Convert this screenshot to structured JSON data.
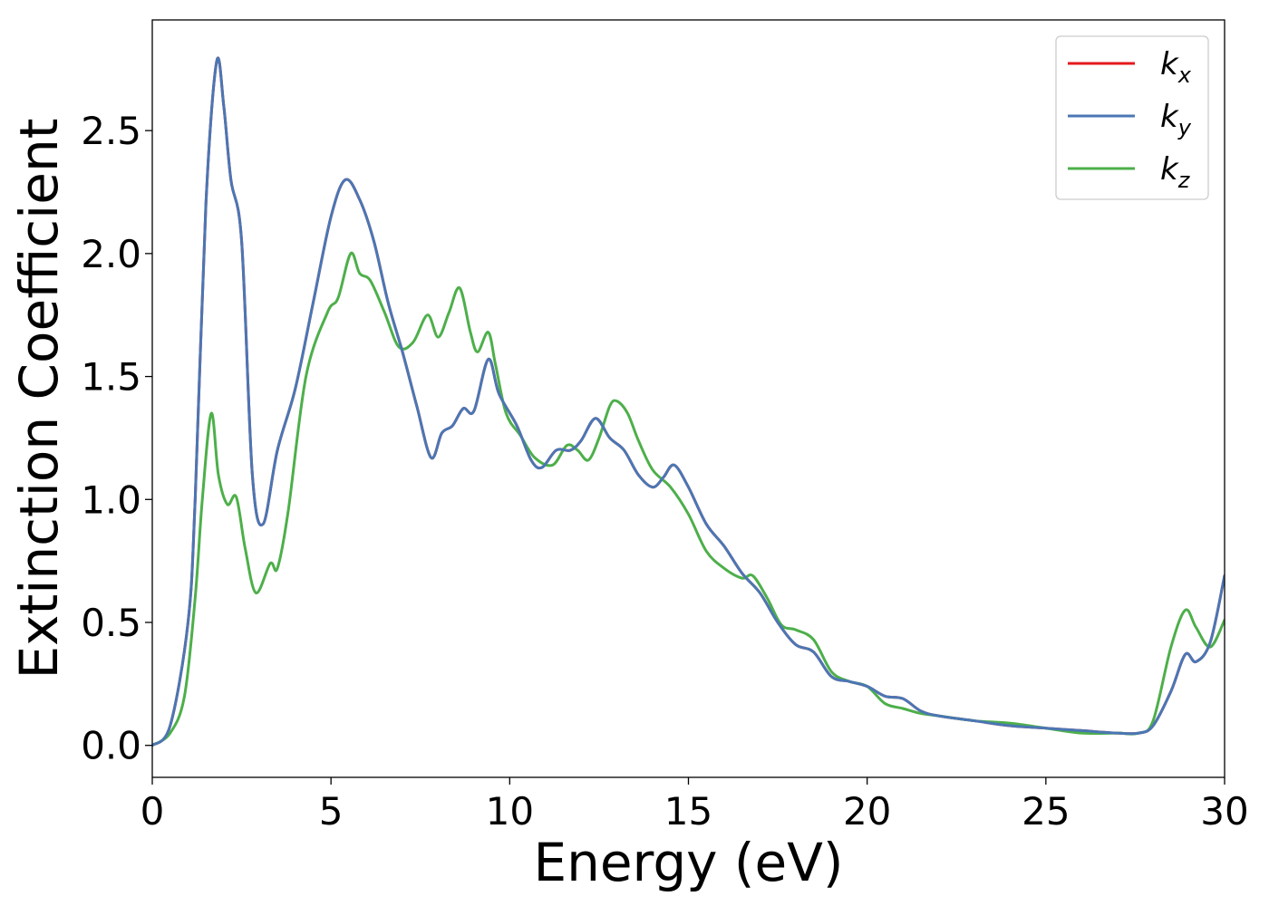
{
  "chart_data": {
    "type": "line",
    "title": "",
    "xlabel": "Energy (eV)",
    "ylabel": "Extinction Coefficient",
    "xlim": [
      0,
      30
    ],
    "ylim": [
      -0.13,
      2.95
    ],
    "xticks": [
      0,
      5,
      10,
      15,
      20,
      25,
      30
    ],
    "xtick_labels": [
      "0",
      "5",
      "10",
      "15",
      "20",
      "25",
      "30"
    ],
    "yticks": [
      0.0,
      0.5,
      1.0,
      1.5,
      2.0,
      2.5
    ],
    "ytick_labels": [
      "0.0",
      "0.5",
      "1.0",
      "1.5",
      "2.0",
      "2.5"
    ],
    "grid": false,
    "legend_position": "top-right",
    "series": [
      {
        "name": "k",
        "subscript": "x",
        "color": "#e41a1c",
        "x": [
          0,
          0.5,
          1.0,
          1.2,
          1.5,
          1.8,
          2.0,
          2.2,
          2.5,
          2.8,
          3.1,
          3.5,
          4.0,
          4.5,
          5.0,
          5.4,
          5.8,
          6.2,
          6.6,
          7.0,
          7.4,
          7.8,
          8.1,
          8.4,
          8.7,
          9.0,
          9.4,
          9.7,
          10.2,
          10.6,
          10.9,
          11.3,
          11.7,
          12.0,
          12.4,
          12.8,
          13.2,
          13.6,
          14.0,
          14.3,
          14.6,
          15.0,
          15.5,
          16.0,
          16.5,
          17.0,
          17.5,
          18.0,
          18.5,
          19.0,
          19.5,
          20.0,
          20.5,
          21.0,
          21.5,
          22.0,
          23.0,
          24.0,
          25.0,
          26.0,
          27.0,
          27.6,
          28.0,
          28.5,
          28.9,
          29.2,
          29.6,
          30.0
        ],
        "y": [
          0.0,
          0.08,
          0.5,
          1.0,
          2.2,
          2.78,
          2.6,
          2.3,
          2.05,
          1.1,
          0.9,
          1.2,
          1.45,
          1.8,
          2.15,
          2.3,
          2.22,
          2.05,
          1.8,
          1.6,
          1.38,
          1.17,
          1.27,
          1.3,
          1.37,
          1.36,
          1.57,
          1.43,
          1.3,
          1.16,
          1.13,
          1.2,
          1.2,
          1.24,
          1.33,
          1.25,
          1.2,
          1.1,
          1.05,
          1.09,
          1.14,
          1.05,
          0.9,
          0.81,
          0.7,
          0.62,
          0.5,
          0.41,
          0.38,
          0.28,
          0.26,
          0.24,
          0.2,
          0.19,
          0.14,
          0.12,
          0.1,
          0.08,
          0.07,
          0.06,
          0.05,
          0.05,
          0.08,
          0.22,
          0.37,
          0.34,
          0.42,
          0.69
        ]
      },
      {
        "name": "k",
        "subscript": "y",
        "color": "#4a77b4",
        "x": [
          0,
          0.5,
          1.0,
          1.2,
          1.5,
          1.8,
          2.0,
          2.2,
          2.5,
          2.8,
          3.1,
          3.5,
          4.0,
          4.5,
          5.0,
          5.4,
          5.8,
          6.2,
          6.6,
          7.0,
          7.4,
          7.8,
          8.1,
          8.4,
          8.7,
          9.0,
          9.4,
          9.7,
          10.2,
          10.6,
          10.9,
          11.3,
          11.7,
          12.0,
          12.4,
          12.8,
          13.2,
          13.6,
          14.0,
          14.3,
          14.6,
          15.0,
          15.5,
          16.0,
          16.5,
          17.0,
          17.5,
          18.0,
          18.5,
          19.0,
          19.5,
          20.0,
          20.5,
          21.0,
          21.5,
          22.0,
          23.0,
          24.0,
          25.0,
          26.0,
          27.0,
          27.6,
          28.0,
          28.5,
          28.9,
          29.2,
          29.6,
          30.0
        ],
        "y": [
          0.0,
          0.08,
          0.5,
          1.0,
          2.2,
          2.78,
          2.6,
          2.3,
          2.05,
          1.1,
          0.9,
          1.2,
          1.45,
          1.8,
          2.15,
          2.3,
          2.22,
          2.05,
          1.8,
          1.6,
          1.38,
          1.17,
          1.27,
          1.3,
          1.37,
          1.36,
          1.57,
          1.43,
          1.3,
          1.16,
          1.13,
          1.2,
          1.2,
          1.24,
          1.33,
          1.25,
          1.2,
          1.1,
          1.05,
          1.09,
          1.14,
          1.05,
          0.9,
          0.81,
          0.7,
          0.62,
          0.5,
          0.41,
          0.38,
          0.28,
          0.26,
          0.24,
          0.2,
          0.19,
          0.14,
          0.12,
          0.1,
          0.08,
          0.07,
          0.06,
          0.05,
          0.05,
          0.08,
          0.22,
          0.37,
          0.34,
          0.42,
          0.69
        ]
      },
      {
        "name": "k",
        "subscript": "z",
        "color": "#4daf4a",
        "x": [
          0,
          0.5,
          0.9,
          1.2,
          1.4,
          1.65,
          1.85,
          2.1,
          2.35,
          2.6,
          2.9,
          3.3,
          3.5,
          3.8,
          4.3,
          4.9,
          5.2,
          5.55,
          5.8,
          6.1,
          6.5,
          6.9,
          7.3,
          7.7,
          8.0,
          8.3,
          8.6,
          8.9,
          9.1,
          9.4,
          9.6,
          9.9,
          10.3,
          10.7,
          11.2,
          11.6,
          11.9,
          12.2,
          12.5,
          12.8,
          13.0,
          13.3,
          13.6,
          14.0,
          14.5,
          15.0,
          15.5,
          16.0,
          16.5,
          16.8,
          17.2,
          17.6,
          18.0,
          18.5,
          19.0,
          19.5,
          20.0,
          20.5,
          21.0,
          21.5,
          22.0,
          23.0,
          24.0,
          25.0,
          26.0,
          27.0,
          27.6,
          28.0,
          28.5,
          28.9,
          29.2,
          29.6,
          30.0
        ],
        "y": [
          0.0,
          0.05,
          0.2,
          0.6,
          1.0,
          1.35,
          1.1,
          0.98,
          1.01,
          0.8,
          0.62,
          0.74,
          0.72,
          0.95,
          1.5,
          1.76,
          1.82,
          2.0,
          1.92,
          1.89,
          1.76,
          1.62,
          1.64,
          1.75,
          1.66,
          1.76,
          1.86,
          1.68,
          1.6,
          1.68,
          1.55,
          1.35,
          1.26,
          1.17,
          1.14,
          1.22,
          1.2,
          1.16,
          1.25,
          1.38,
          1.4,
          1.35,
          1.24,
          1.12,
          1.05,
          0.94,
          0.79,
          0.72,
          0.68,
          0.69,
          0.6,
          0.49,
          0.47,
          0.43,
          0.3,
          0.26,
          0.24,
          0.17,
          0.15,
          0.13,
          0.12,
          0.1,
          0.09,
          0.07,
          0.05,
          0.05,
          0.05,
          0.1,
          0.4,
          0.55,
          0.48,
          0.4,
          0.51
        ]
      }
    ]
  }
}
